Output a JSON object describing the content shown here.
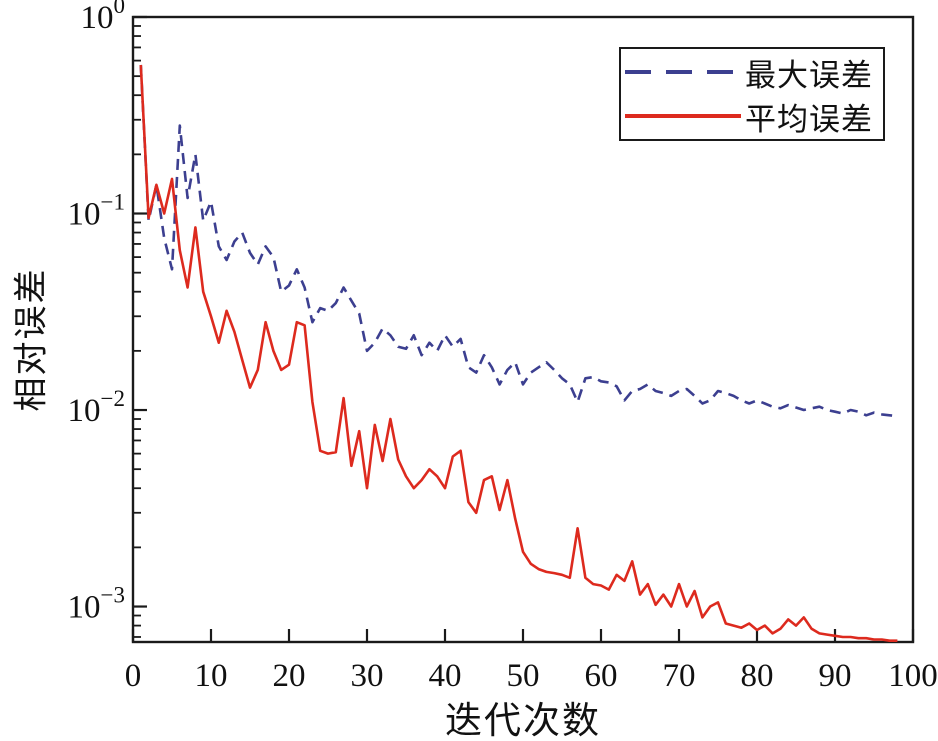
{
  "figure_colors": {
    "max_error": "#3c3f90",
    "avg_error": "#dd2a1e",
    "axis": "#1a1a1a",
    "background": "#ffffff"
  },
  "chart_data": {
    "type": "line",
    "title": "",
    "xlabel": "迭代次数",
    "ylabel": "相对误差",
    "x_scale": "linear",
    "y_scale": "log",
    "xlim": [
      0,
      100
    ],
    "ylim": [
      0.00066,
      1.0
    ],
    "x_ticks": [
      0,
      10,
      20,
      30,
      40,
      50,
      60,
      70,
      80,
      90,
      100
    ],
    "y_tick_exponents": [
      0,
      -1,
      -2,
      -3
    ],
    "grid": false,
    "legend_position": "upper right",
    "x": [
      1,
      2,
      3,
      4,
      5,
      6,
      7,
      8,
      9,
      10,
      11,
      12,
      13,
      14,
      15,
      16,
      17,
      18,
      19,
      20,
      21,
      22,
      23,
      24,
      25,
      26,
      27,
      28,
      29,
      30,
      31,
      32,
      33,
      34,
      35,
      36,
      37,
      38,
      39,
      40,
      41,
      42,
      43,
      44,
      45,
      46,
      47,
      48,
      49,
      50,
      51,
      52,
      53,
      54,
      55,
      56,
      57,
      58,
      59,
      60,
      61,
      62,
      63,
      64,
      65,
      66,
      67,
      68,
      69,
      70,
      71,
      72,
      73,
      74,
      75,
      76,
      77,
      78,
      79,
      80,
      81,
      82,
      83,
      84,
      85,
      86,
      87,
      88,
      89,
      90,
      91,
      92,
      93,
      94,
      95,
      96,
      97,
      98
    ],
    "series": [
      {
        "name": "最大误差",
        "color": "#3c3f90",
        "line_style": "dashed",
        "values": [
          0.57,
          0.092,
          0.14,
          0.075,
          0.052,
          0.28,
          0.12,
          0.2,
          0.092,
          0.115,
          0.068,
          0.058,
          0.072,
          0.08,
          0.063,
          0.055,
          0.068,
          0.06,
          0.04,
          0.043,
          0.052,
          0.042,
          0.028,
          0.033,
          0.032,
          0.035,
          0.042,
          0.036,
          0.031,
          0.02,
          0.022,
          0.026,
          0.024,
          0.021,
          0.0205,
          0.024,
          0.019,
          0.022,
          0.02,
          0.024,
          0.021,
          0.023,
          0.0165,
          0.0155,
          0.019,
          0.0165,
          0.0135,
          0.016,
          0.0175,
          0.0135,
          0.0155,
          0.0165,
          0.0175,
          0.016,
          0.0145,
          0.0135,
          0.011,
          0.0145,
          0.0147,
          0.014,
          0.0138,
          0.0132,
          0.0112,
          0.0125,
          0.0128,
          0.0135,
          0.0125,
          0.0122,
          0.0118,
          0.0125,
          0.0128,
          0.0118,
          0.0108,
          0.0112,
          0.0125,
          0.0122,
          0.0118,
          0.0112,
          0.0108,
          0.0112,
          0.0108,
          0.0104,
          0.0102,
          0.0106,
          0.0103,
          0.01,
          0.0102,
          0.0104,
          0.01,
          0.0098,
          0.0096,
          0.01,
          0.0098,
          0.0094,
          0.0097,
          0.0095,
          0.0094,
          0.0093
        ]
      },
      {
        "name": "平均误差",
        "color": "#dd2a1e",
        "line_style": "solid",
        "values": [
          0.57,
          0.095,
          0.14,
          0.1,
          0.15,
          0.065,
          0.042,
          0.085,
          0.04,
          0.03,
          0.022,
          0.032,
          0.025,
          0.018,
          0.013,
          0.016,
          0.028,
          0.02,
          0.016,
          0.017,
          0.028,
          0.027,
          0.011,
          0.0062,
          0.006,
          0.0061,
          0.0115,
          0.0052,
          0.0078,
          0.004,
          0.0084,
          0.0055,
          0.009,
          0.0056,
          0.0046,
          0.004,
          0.0044,
          0.005,
          0.0046,
          0.004,
          0.0058,
          0.0062,
          0.0034,
          0.003,
          0.0044,
          0.0046,
          0.0031,
          0.0044,
          0.0028,
          0.0019,
          0.00165,
          0.00155,
          0.0015,
          0.00148,
          0.00145,
          0.0014,
          0.0025,
          0.0014,
          0.0013,
          0.00128,
          0.00122,
          0.00145,
          0.00135,
          0.0017,
          0.00115,
          0.0013,
          0.00102,
          0.00115,
          0.001,
          0.0013,
          0.001,
          0.0012,
          0.00088,
          0.001,
          0.00105,
          0.00082,
          0.0008,
          0.00078,
          0.00082,
          0.00076,
          0.0008,
          0.00073,
          0.00077,
          0.00086,
          0.0008,
          0.00088,
          0.00077,
          0.00073,
          0.00072,
          0.00071,
          0.0007,
          0.0007,
          0.00069,
          0.00069,
          0.00068,
          0.00068,
          0.00067,
          0.00067
        ]
      }
    ]
  }
}
